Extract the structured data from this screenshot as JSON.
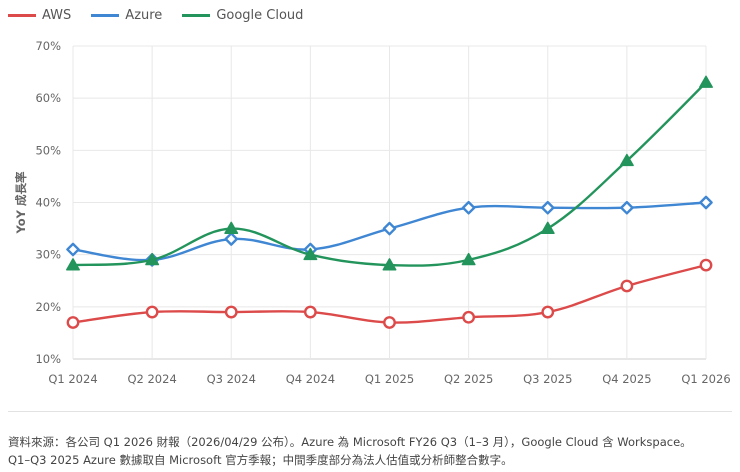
{
  "chart_data": {
    "type": "line",
    "categories": [
      "Q1 2024",
      "Q2 2024",
      "Q3 2024",
      "Q4 2024",
      "Q1 2025",
      "Q2 2025",
      "Q3 2025",
      "Q4 2025",
      "Q1 2026"
    ],
    "ylabel": "YoY 成長率",
    "ylim": [
      10,
      70
    ],
    "yticks": [
      10,
      20,
      30,
      40,
      50,
      60,
      70
    ],
    "ytick_labels": [
      "10%",
      "20%",
      "30%",
      "40%",
      "50%",
      "60%",
      "70%"
    ],
    "grid": true,
    "legend_position": "top-left",
    "series": [
      {
        "name": "AWS",
        "color": "#dc4a4a",
        "marker": "circle",
        "values": [
          17,
          19,
          19,
          19,
          17,
          18,
          19,
          24,
          28
        ]
      },
      {
        "name": "Azure",
        "color": "#3f86d3",
        "marker": "diamond",
        "values": [
          31,
          29,
          33,
          31,
          35,
          39,
          39,
          39,
          40
        ]
      },
      {
        "name": "Google Cloud",
        "color": "#23945b",
        "marker": "triangle",
        "values": [
          28,
          29,
          35,
          30,
          28,
          29,
          35,
          48,
          63
        ]
      }
    ]
  },
  "source": {
    "line1": "資料來源：各公司 Q1 2026 財報（2026/04/29 公布）。Azure 為 Microsoft FY26 Q3（1–3 月），Google Cloud 含 Workspace。",
    "line2": "Q1–Q3 2025 Azure 數據取自 Microsoft 官方季報；中間季度部分為法人估值或分析師整合數字。"
  }
}
